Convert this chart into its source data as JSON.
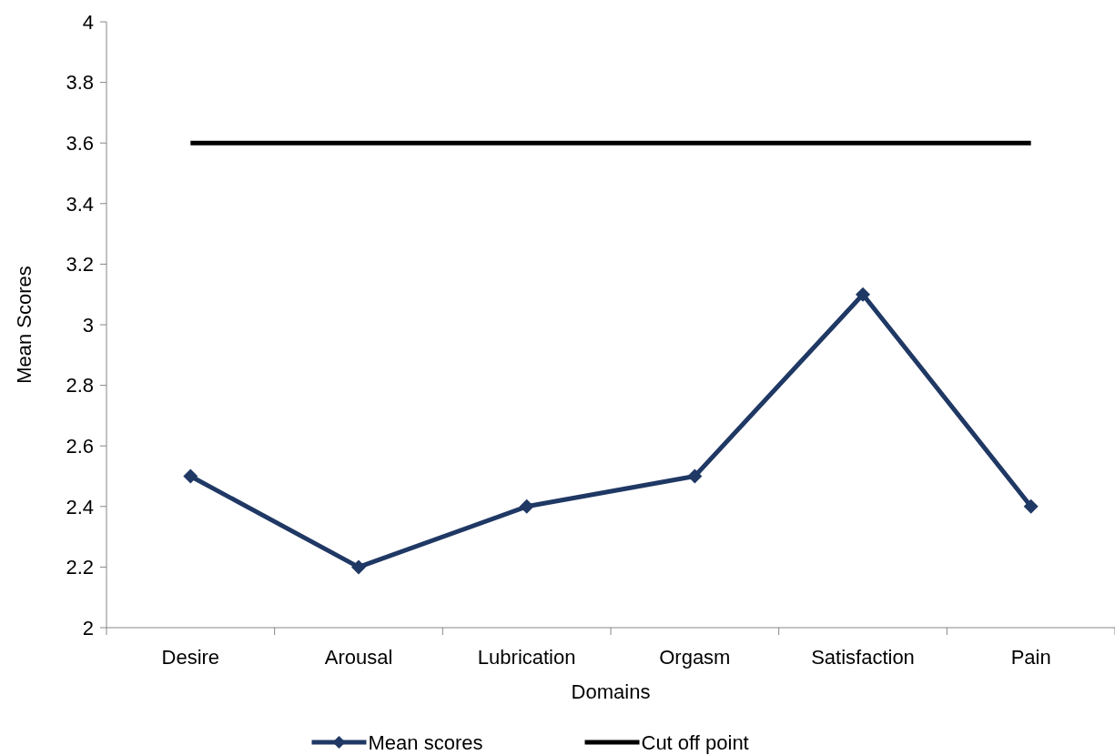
{
  "chart_data": {
    "type": "line",
    "xlabel": "Domains",
    "ylabel": "Mean Scores",
    "categories": [
      "Desire",
      "Arousal",
      "Lubrication",
      "Orgasm",
      "Satisfaction",
      "Pain"
    ],
    "series": [
      {
        "name": "Mean scores",
        "color": "#1f3864",
        "marker": "diamond",
        "values": [
          2.5,
          2.2,
          2.4,
          2.5,
          3.1,
          2.4
        ]
      },
      {
        "name": "Cut off point",
        "color": "#000000",
        "marker": "none",
        "values": [
          3.6,
          3.6,
          3.6,
          3.6,
          3.6,
          3.6
        ]
      }
    ],
    "ylim": [
      2,
      4
    ],
    "yticks": [
      2,
      2.2,
      2.4,
      2.6,
      2.8,
      3,
      3.2,
      3.4,
      3.6,
      3.8,
      4
    ],
    "grid": false,
    "legend": "bottom"
  }
}
